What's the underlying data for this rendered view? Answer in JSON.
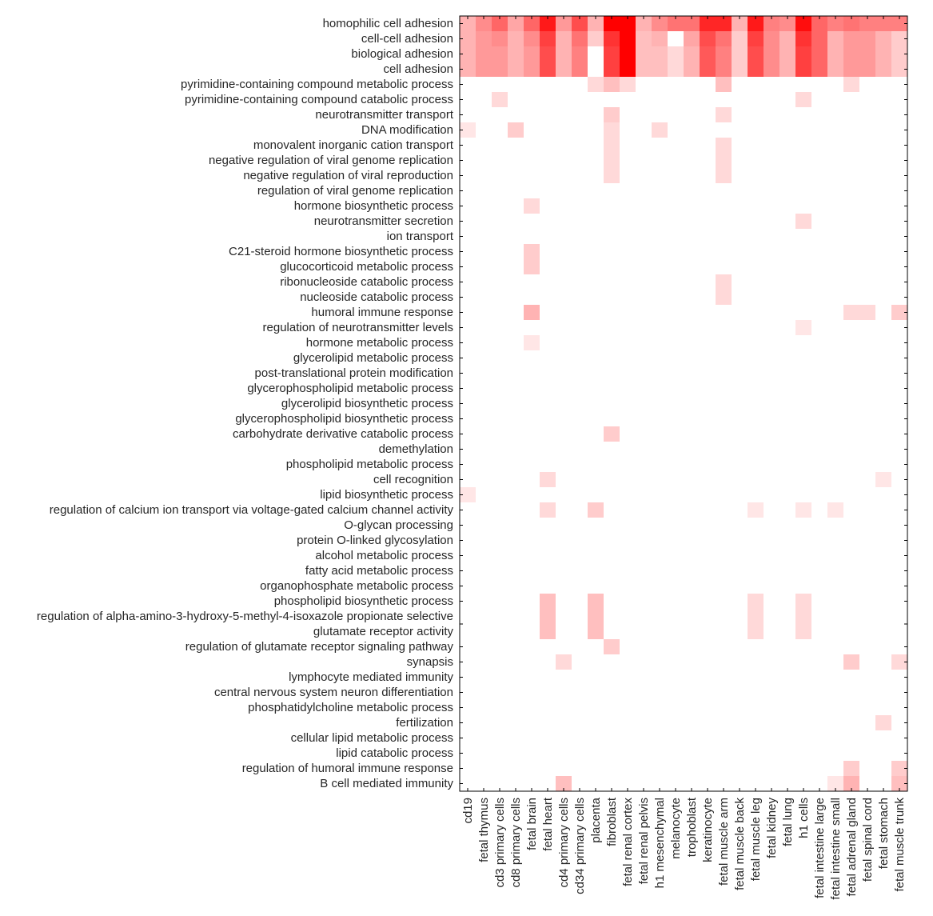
{
  "chart_data": {
    "type": "heatmap",
    "title": "",
    "xlabel": "",
    "ylabel": "",
    "colormap": {
      "low": "#ffffff",
      "high": "#ff0000"
    },
    "value_range": [
      0,
      1
    ],
    "grid": false,
    "rows": [
      "homophilic cell adhesion",
      "cell-cell adhesion",
      "biological adhesion",
      "cell adhesion",
      "pyrimidine-containing compound metabolic process",
      "pyrimidine-containing compound catabolic process",
      "neurotransmitter transport",
      "DNA modification",
      "monovalent inorganic cation transport",
      "negative regulation of viral genome replication",
      "negative regulation of viral reproduction",
      "regulation of viral genome replication",
      "hormone biosynthetic process",
      "neurotransmitter secretion",
      "ion transport",
      "C21-steroid hormone biosynthetic process",
      "glucocorticoid metabolic process",
      "ribonucleoside catabolic process",
      "nucleoside catabolic process",
      "humoral immune response",
      "regulation of neurotransmitter levels",
      "hormone metabolic process",
      "glycerolipid metabolic process",
      "post-translational protein modification",
      "glycerophospholipid metabolic process",
      "glycerolipid biosynthetic process",
      "glycerophospholipid biosynthetic process",
      "carbohydrate derivative catabolic process",
      "demethylation",
      "phospholipid metabolic process",
      "cell recognition",
      "lipid biosynthetic process",
      "regulation of calcium ion transport via voltage-gated calcium channel activity",
      "O-glycan processing",
      "protein O-linked glycosylation",
      "alcohol metabolic process",
      "fatty acid metabolic process",
      "organophosphate metabolic process",
      "phospholipid biosynthetic process",
      "regulation of alpha-amino-3-hydroxy-5-methyl-4-isoxazole propionate selective glutamate receptor activity",
      "regulation of glutamate receptor signaling pathway",
      "synapsis",
      "lymphocyte mediated immunity",
      "central nervous system neuron differentiation",
      "phosphatidylcholine metabolic process",
      "fertilization",
      "cellular lipid metabolic process",
      "lipid catabolic process",
      "regulation of humoral immune response",
      "B cell mediated immunity"
    ],
    "columns": [
      "cd19",
      "fetal thymus",
      "cd3 primary cells",
      "cd8 primary cells",
      "fetal brain",
      "fetal heart",
      "cd4 primary cells",
      "cd34 primary cells",
      "placenta",
      "fibroblast",
      "fetal renal cortex",
      "fetal renal pelvis",
      "h1 mesenchymal",
      "melanocyte",
      "trophoblast",
      "keratinocyte",
      "fetal muscle arm",
      "fetal muscle back",
      "fetal muscle leg",
      "fetal kidney",
      "fetal lung",
      "h1 cells",
      "fetal intestine large",
      "fetal intestine small",
      "fetal adrenal gland",
      "fetal spinal cord",
      "fetal stomach",
      "fetal muscle trunk"
    ],
    "values": [
      [
        0.3,
        0.45,
        0.6,
        0.35,
        0.6,
        0.9,
        0.4,
        0.7,
        0.3,
        1,
        1,
        0.3,
        0.45,
        0.55,
        0.55,
        0.85,
        0.85,
        0.3,
        0.9,
        0.5,
        0.45,
        0.95,
        0.6,
        0.5,
        0.55,
        0.5,
        0.5,
        0.5
      ],
      [
        0.3,
        0.4,
        0.45,
        0.3,
        0.45,
        0.75,
        0.3,
        0.55,
        0.2,
        0.8,
        1,
        0.25,
        0.3,
        0,
        0.35,
        0.7,
        0.55,
        0.2,
        0.75,
        0.45,
        0.3,
        0.8,
        0.6,
        0.3,
        0.4,
        0.4,
        0.3,
        0.2
      ],
      [
        0.3,
        0.4,
        0.4,
        0.3,
        0.4,
        0.7,
        0.3,
        0.5,
        0,
        0.75,
        1,
        0.25,
        0.25,
        0.15,
        0.3,
        0.65,
        0.5,
        0.2,
        0.7,
        0.45,
        0.3,
        0.75,
        0.6,
        0.3,
        0.4,
        0.4,
        0.3,
        0.2
      ],
      [
        0.3,
        0.4,
        0.4,
        0.3,
        0.4,
        0.7,
        0.3,
        0.5,
        0,
        0.75,
        1,
        0.25,
        0.25,
        0.15,
        0.3,
        0.65,
        0.5,
        0.2,
        0.7,
        0.45,
        0.3,
        0.75,
        0.6,
        0.3,
        0.4,
        0.4,
        0.3,
        0.2
      ],
      [
        0,
        0,
        0,
        0,
        0,
        0,
        0,
        0,
        0.15,
        0.25,
        0.15,
        0,
        0,
        0,
        0,
        0,
        0.25,
        0,
        0,
        0,
        0,
        0,
        0,
        0,
        0.15,
        0,
        0,
        0
      ],
      [
        0,
        0,
        0.15,
        0,
        0,
        0,
        0,
        0,
        0,
        0,
        0,
        0,
        0,
        0,
        0,
        0,
        0,
        0,
        0,
        0,
        0,
        0.15,
        0,
        0,
        0,
        0,
        0,
        0
      ],
      [
        0,
        0,
        0,
        0,
        0,
        0,
        0,
        0,
        0,
        0.2,
        0,
        0,
        0,
        0,
        0,
        0,
        0.15,
        0,
        0,
        0,
        0,
        0,
        0,
        0,
        0,
        0,
        0,
        0
      ],
      [
        0.1,
        0,
        0,
        0.2,
        0,
        0,
        0,
        0,
        0,
        0.15,
        0,
        0,
        0.15,
        0,
        0,
        0,
        0,
        0,
        0,
        0,
        0,
        0,
        0,
        0,
        0,
        0,
        0,
        0
      ],
      [
        0,
        0,
        0,
        0,
        0,
        0,
        0,
        0,
        0,
        0.15,
        0,
        0,
        0,
        0,
        0,
        0,
        0.15,
        0,
        0,
        0,
        0,
        0,
        0,
        0,
        0,
        0,
        0,
        0
      ],
      [
        0,
        0,
        0,
        0,
        0,
        0,
        0,
        0,
        0,
        0.15,
        0,
        0,
        0,
        0,
        0,
        0,
        0.15,
        0,
        0,
        0,
        0,
        0,
        0,
        0,
        0,
        0,
        0,
        0
      ],
      [
        0,
        0,
        0,
        0,
        0,
        0,
        0,
        0,
        0,
        0.15,
        0,
        0,
        0,
        0,
        0,
        0,
        0.15,
        0,
        0,
        0,
        0,
        0,
        0,
        0,
        0,
        0,
        0,
        0
      ],
      [
        0,
        0,
        0,
        0,
        0,
        0,
        0,
        0,
        0,
        0,
        0,
        0,
        0,
        0,
        0,
        0,
        0,
        0,
        0,
        0,
        0,
        0,
        0,
        0,
        0,
        0,
        0,
        0
      ],
      [
        0,
        0,
        0,
        0,
        0.15,
        0,
        0,
        0,
        0,
        0,
        0,
        0,
        0,
        0,
        0,
        0,
        0,
        0,
        0,
        0,
        0,
        0,
        0,
        0,
        0,
        0,
        0,
        0
      ],
      [
        0,
        0,
        0,
        0,
        0,
        0,
        0,
        0,
        0,
        0,
        0,
        0,
        0,
        0,
        0,
        0,
        0,
        0,
        0,
        0,
        0,
        0.15,
        0,
        0,
        0,
        0,
        0,
        0
      ],
      [
        0,
        0,
        0,
        0,
        0,
        0,
        0,
        0,
        0,
        0,
        0,
        0,
        0,
        0,
        0,
        0,
        0,
        0,
        0,
        0,
        0,
        0,
        0,
        0,
        0,
        0,
        0,
        0
      ],
      [
        0,
        0,
        0,
        0,
        0.2,
        0,
        0,
        0,
        0,
        0,
        0,
        0,
        0,
        0,
        0,
        0,
        0,
        0,
        0,
        0,
        0,
        0,
        0,
        0,
        0,
        0,
        0,
        0
      ],
      [
        0,
        0,
        0,
        0,
        0.2,
        0,
        0,
        0,
        0,
        0,
        0,
        0,
        0,
        0,
        0,
        0,
        0,
        0,
        0,
        0,
        0,
        0,
        0,
        0,
        0,
        0,
        0,
        0
      ],
      [
        0,
        0,
        0,
        0,
        0,
        0,
        0,
        0,
        0,
        0,
        0,
        0,
        0,
        0,
        0,
        0,
        0.15,
        0,
        0,
        0,
        0,
        0,
        0,
        0,
        0,
        0,
        0,
        0
      ],
      [
        0,
        0,
        0,
        0,
        0,
        0,
        0,
        0,
        0,
        0,
        0,
        0,
        0,
        0,
        0,
        0,
        0.15,
        0,
        0,
        0,
        0,
        0,
        0,
        0,
        0,
        0,
        0,
        0
      ],
      [
        0,
        0,
        0,
        0,
        0.3,
        0,
        0,
        0,
        0,
        0,
        0,
        0,
        0,
        0,
        0,
        0,
        0,
        0,
        0,
        0,
        0,
        0,
        0,
        0,
        0.15,
        0.15,
        0,
        0.2
      ],
      [
        0,
        0,
        0,
        0,
        0,
        0,
        0,
        0,
        0,
        0,
        0,
        0,
        0,
        0,
        0,
        0,
        0,
        0,
        0,
        0,
        0,
        0.1,
        0,
        0,
        0,
        0,
        0,
        0
      ],
      [
        0,
        0,
        0,
        0,
        0.1,
        0,
        0,
        0,
        0,
        0,
        0,
        0,
        0,
        0,
        0,
        0,
        0,
        0,
        0,
        0,
        0,
        0,
        0,
        0,
        0,
        0,
        0,
        0
      ],
      [
        0,
        0,
        0,
        0,
        0,
        0,
        0,
        0,
        0,
        0,
        0,
        0,
        0,
        0,
        0,
        0,
        0,
        0,
        0,
        0,
        0,
        0,
        0,
        0,
        0,
        0,
        0,
        0
      ],
      [
        0,
        0,
        0,
        0,
        0,
        0,
        0,
        0,
        0,
        0,
        0,
        0,
        0,
        0,
        0,
        0,
        0,
        0,
        0,
        0,
        0,
        0,
        0,
        0,
        0,
        0,
        0,
        0
      ],
      [
        0,
        0,
        0,
        0,
        0,
        0,
        0,
        0,
        0,
        0,
        0,
        0,
        0,
        0,
        0,
        0,
        0,
        0,
        0,
        0,
        0,
        0,
        0,
        0,
        0,
        0,
        0,
        0
      ],
      [
        0,
        0,
        0,
        0,
        0,
        0,
        0,
        0,
        0,
        0,
        0,
        0,
        0,
        0,
        0,
        0,
        0,
        0,
        0,
        0,
        0,
        0,
        0,
        0,
        0,
        0,
        0,
        0
      ],
      [
        0,
        0,
        0,
        0,
        0,
        0,
        0,
        0,
        0,
        0,
        0,
        0,
        0,
        0,
        0,
        0,
        0,
        0,
        0,
        0,
        0,
        0,
        0,
        0,
        0,
        0,
        0,
        0
      ],
      [
        0,
        0,
        0,
        0,
        0,
        0,
        0,
        0,
        0,
        0.2,
        0,
        0,
        0,
        0,
        0,
        0,
        0,
        0,
        0,
        0,
        0,
        0,
        0,
        0,
        0,
        0,
        0,
        0
      ],
      [
        0,
        0,
        0,
        0,
        0,
        0,
        0,
        0,
        0,
        0,
        0,
        0,
        0,
        0,
        0,
        0,
        0,
        0,
        0,
        0,
        0,
        0,
        0,
        0,
        0,
        0,
        0,
        0
      ],
      [
        0,
        0,
        0,
        0,
        0,
        0,
        0,
        0,
        0,
        0,
        0,
        0,
        0,
        0,
        0,
        0,
        0,
        0,
        0,
        0,
        0,
        0,
        0,
        0,
        0,
        0,
        0,
        0
      ],
      [
        0,
        0,
        0,
        0,
        0,
        0.15,
        0,
        0,
        0,
        0,
        0,
        0,
        0,
        0,
        0,
        0,
        0,
        0,
        0,
        0,
        0,
        0,
        0,
        0,
        0,
        0,
        0.1,
        0
      ],
      [
        0.1,
        0,
        0,
        0,
        0,
        0,
        0,
        0,
        0,
        0,
        0,
        0,
        0,
        0,
        0,
        0,
        0,
        0,
        0,
        0,
        0,
        0,
        0,
        0,
        0,
        0,
        0,
        0
      ],
      [
        0,
        0,
        0,
        0,
        0,
        0.15,
        0,
        0,
        0.2,
        0,
        0,
        0,
        0,
        0,
        0,
        0,
        0,
        0,
        0.1,
        0,
        0,
        0.1,
        0,
        0.1,
        0,
        0,
        0,
        0
      ],
      [
        0,
        0,
        0,
        0,
        0,
        0,
        0,
        0,
        0,
        0,
        0,
        0,
        0,
        0,
        0,
        0,
        0,
        0,
        0,
        0,
        0,
        0,
        0,
        0,
        0,
        0,
        0,
        0
      ],
      [
        0,
        0,
        0,
        0,
        0,
        0,
        0,
        0,
        0,
        0,
        0,
        0,
        0,
        0,
        0,
        0,
        0,
        0,
        0,
        0,
        0,
        0,
        0,
        0,
        0,
        0,
        0,
        0
      ],
      [
        0,
        0,
        0,
        0,
        0,
        0,
        0,
        0,
        0,
        0,
        0,
        0,
        0,
        0,
        0,
        0,
        0,
        0,
        0,
        0,
        0,
        0,
        0,
        0,
        0,
        0,
        0,
        0
      ],
      [
        0,
        0,
        0,
        0,
        0,
        0,
        0,
        0,
        0,
        0,
        0,
        0,
        0,
        0,
        0,
        0,
        0,
        0,
        0,
        0,
        0,
        0,
        0,
        0,
        0,
        0,
        0,
        0
      ],
      [
        0,
        0,
        0,
        0,
        0,
        0,
        0,
        0,
        0,
        0,
        0,
        0,
        0,
        0,
        0,
        0,
        0,
        0,
        0,
        0,
        0,
        0,
        0,
        0,
        0,
        0,
        0,
        0
      ],
      [
        0,
        0,
        0,
        0,
        0,
        0.25,
        0,
        0,
        0.25,
        0,
        0,
        0,
        0,
        0,
        0,
        0,
        0,
        0,
        0.15,
        0,
        0,
        0.15,
        0,
        0,
        0,
        0,
        0,
        0
      ],
      [
        0,
        0,
        0,
        0,
        0,
        0.25,
        0,
        0,
        0.25,
        0,
        0,
        0,
        0,
        0,
        0,
        0,
        0,
        0,
        0.15,
        0,
        0,
        0.15,
        0,
        0,
        0,
        0,
        0,
        0
      ],
      [
        0,
        0,
        0,
        0,
        0,
        0,
        0,
        0,
        0,
        0.2,
        0,
        0,
        0,
        0,
        0,
        0,
        0,
        0,
        0,
        0,
        0,
        0,
        0,
        0,
        0,
        0,
        0,
        0
      ],
      [
        0,
        0,
        0,
        0,
        0,
        0,
        0.15,
        0,
        0,
        0,
        0,
        0,
        0,
        0,
        0,
        0,
        0,
        0,
        0,
        0,
        0,
        0,
        0,
        0,
        0.2,
        0,
        0,
        0.15
      ],
      [
        0,
        0,
        0,
        0,
        0,
        0,
        0,
        0,
        0,
        0,
        0,
        0,
        0,
        0,
        0,
        0,
        0,
        0,
        0,
        0,
        0,
        0,
        0,
        0,
        0,
        0,
        0,
        0
      ],
      [
        0,
        0,
        0,
        0,
        0,
        0,
        0,
        0,
        0,
        0,
        0,
        0,
        0,
        0,
        0,
        0,
        0,
        0,
        0,
        0,
        0,
        0,
        0,
        0,
        0,
        0,
        0,
        0
      ],
      [
        0,
        0,
        0,
        0,
        0,
        0,
        0,
        0,
        0,
        0,
        0,
        0,
        0,
        0,
        0,
        0,
        0,
        0,
        0,
        0,
        0,
        0,
        0,
        0,
        0,
        0,
        0,
        0
      ],
      [
        0,
        0,
        0,
        0,
        0,
        0,
        0,
        0,
        0,
        0,
        0,
        0,
        0,
        0,
        0,
        0,
        0,
        0,
        0,
        0,
        0,
        0,
        0,
        0,
        0,
        0,
        0.15,
        0
      ],
      [
        0,
        0,
        0,
        0,
        0,
        0,
        0,
        0,
        0,
        0,
        0,
        0,
        0,
        0,
        0,
        0,
        0,
        0,
        0,
        0,
        0,
        0,
        0,
        0,
        0,
        0,
        0,
        0
      ],
      [
        0,
        0,
        0,
        0,
        0,
        0,
        0,
        0,
        0,
        0,
        0,
        0,
        0,
        0,
        0,
        0,
        0,
        0,
        0,
        0,
        0,
        0,
        0,
        0,
        0,
        0,
        0,
        0
      ],
      [
        0,
        0,
        0,
        0,
        0,
        0,
        0,
        0,
        0,
        0,
        0,
        0,
        0,
        0,
        0,
        0,
        0,
        0,
        0,
        0,
        0,
        0,
        0,
        0,
        0.2,
        0,
        0,
        0.2
      ],
      [
        0,
        0,
        0,
        0,
        0,
        0,
        0.25,
        0,
        0,
        0,
        0,
        0,
        0,
        0,
        0,
        0,
        0,
        0,
        0,
        0,
        0,
        0,
        0,
        0.1,
        0.3,
        0,
        0,
        0.25
      ]
    ]
  }
}
